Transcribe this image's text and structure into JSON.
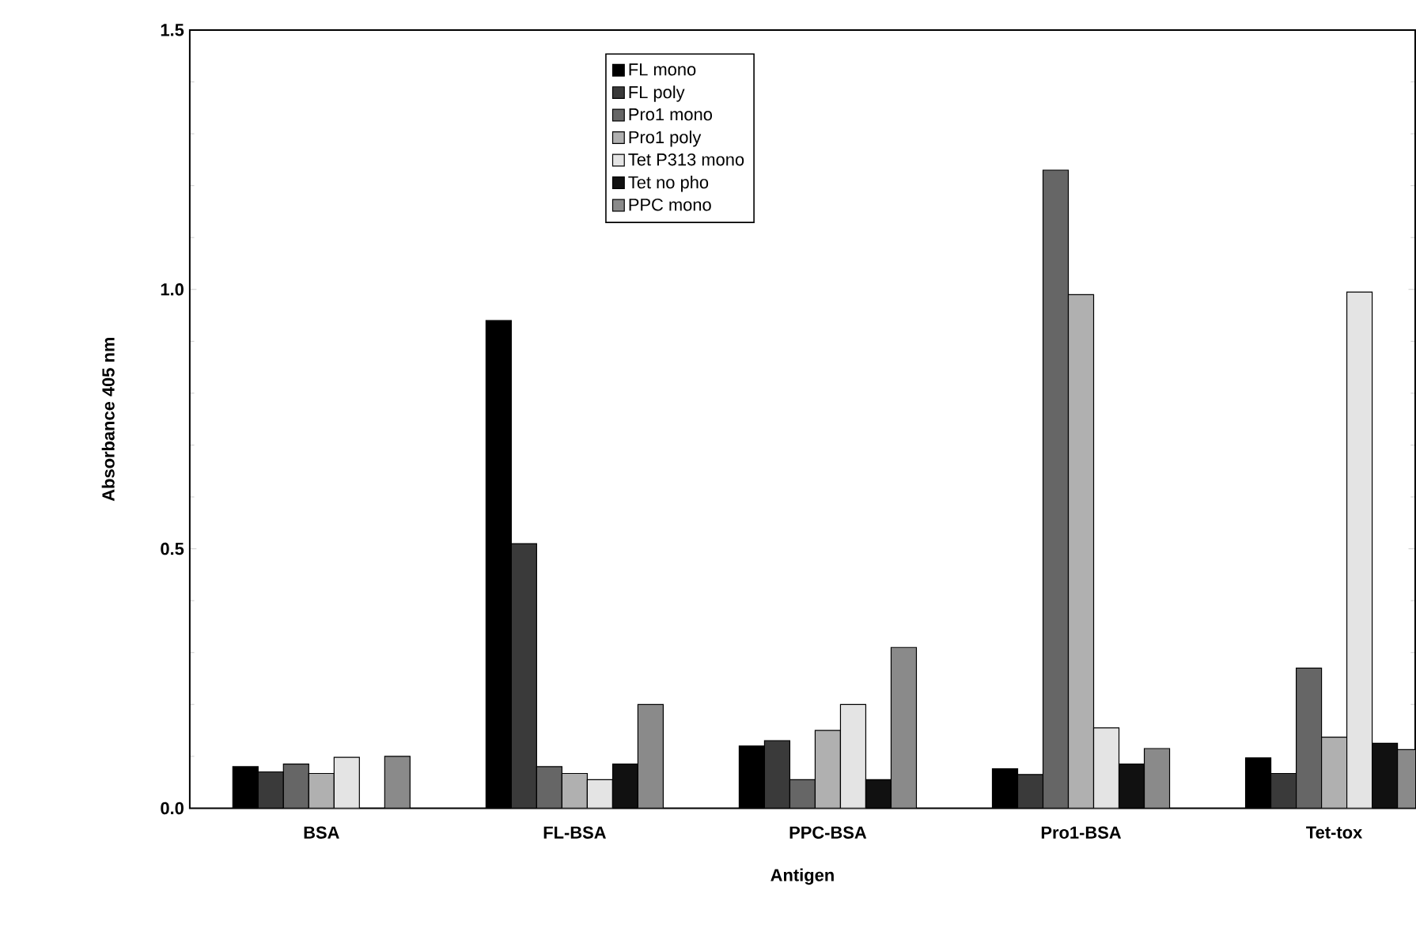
{
  "chart_data": {
    "type": "bar",
    "xlabel": "Antigen",
    "ylabel": "Absorbance 405 nm",
    "categories": [
      "BSA",
      "FL-BSA",
      "PPC-BSA",
      "Pro1-BSA",
      "Tet-tox"
    ],
    "series": [
      {
        "name": "FL mono",
        "color": "#000000",
        "values": [
          0.08,
          0.94,
          0.12,
          0.076,
          0.097
        ]
      },
      {
        "name": "FL poly",
        "color": "#3a3a3a",
        "values": [
          0.07,
          0.51,
          0.13,
          0.065,
          0.067
        ]
      },
      {
        "name": "Pro1 mono",
        "color": "#666666",
        "values": [
          0.085,
          0.08,
          0.055,
          1.23,
          0.27
        ]
      },
      {
        "name": "Pro1 poly",
        "color": "#b0b0b0",
        "values": [
          0.067,
          0.067,
          0.15,
          0.99,
          0.137
        ]
      },
      {
        "name": "Tet P313 mono",
        "color": "#e4e4e4",
        "values": [
          0.098,
          0.055,
          0.2,
          0.155,
          0.995
        ]
      },
      {
        "name": "Tet no pho",
        "color": "#111111",
        "values": [
          null,
          0.085,
          0.055,
          0.085,
          0.125
        ]
      },
      {
        "name": "PPC mono",
        "color": "#8a8a8a",
        "values": [
          0.1,
          0.2,
          0.31,
          0.115,
          0.113
        ]
      }
    ],
    "ylim": [
      0,
      1.5
    ],
    "yticks": [
      {
        "value": 0,
        "label": "0.0"
      },
      0.5,
      {
        "value": 1,
        "label": "1.0"
      },
      1.5
    ],
    "grid": false,
    "legend": "top"
  }
}
